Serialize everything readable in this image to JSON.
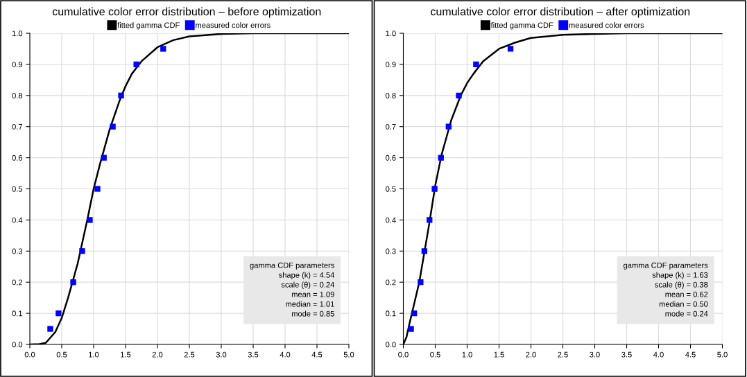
{
  "chart_data": [
    {
      "type": "scatter",
      "title": "cumulative color error distribution – before optimization",
      "legend": "top",
      "grid": true,
      "xlim": [
        0,
        5
      ],
      "ylim": [
        0,
        1
      ],
      "xticks": [
        {
          "value": 0,
          "label": "0.0"
        },
        {
          "value": 0.5,
          "label": "0.5"
        },
        {
          "value": 1,
          "label": "1.0"
        },
        {
          "value": 1.5,
          "label": "1.5"
        },
        {
          "value": 2,
          "label": "2.0"
        },
        {
          "value": 2.5,
          "label": "2.5"
        },
        {
          "value": 3,
          "label": "3.0"
        },
        {
          "value": 3.5,
          "label": "3.5"
        },
        {
          "value": 4,
          "label": "4.0"
        },
        {
          "value": 4.5,
          "label": "4.5"
        },
        {
          "value": 5,
          "label": "5.0"
        }
      ],
      "yticks": [
        {
          "value": 0,
          "label": "0.0"
        },
        {
          "value": 0.1,
          "label": "0.1"
        },
        {
          "value": 0.2,
          "label": "0.2"
        },
        {
          "value": 0.3,
          "label": "0.3"
        },
        {
          "value": 0.4,
          "label": "0.4"
        },
        {
          "value": 0.5,
          "label": "0.5"
        },
        {
          "value": 0.6,
          "label": "0.6"
        },
        {
          "value": 0.7,
          "label": "0.7"
        },
        {
          "value": 0.8,
          "label": "0.8"
        },
        {
          "value": 0.9,
          "label": "0.9"
        },
        {
          "value": 1,
          "label": "1.0"
        }
      ],
      "series": [
        {
          "name": "fitted gamma CDF",
          "type": "line",
          "color": "#000000",
          "marker": "none",
          "line_style": "solid",
          "x": [
            0,
            0.15,
            0.25,
            0.4,
            0.5,
            0.6,
            0.75,
            0.9,
            1.0,
            1.1,
            1.25,
            1.4,
            1.5,
            1.6,
            1.75,
            2.0,
            2.25,
            2.5,
            3.0,
            3.5,
            5.0
          ],
          "values": [
            0,
            0.001,
            0.005,
            0.04,
            0.085,
            0.15,
            0.26,
            0.4,
            0.5,
            0.58,
            0.69,
            0.78,
            0.83,
            0.87,
            0.91,
            0.955,
            0.978,
            0.99,
            0.998,
            1.0,
            1.0
          ]
        },
        {
          "name": "measured color errors",
          "color": "#0000ff",
          "marker": "square",
          "x": [
            0.32,
            0.45,
            0.68,
            0.82,
            0.94,
            1.06,
            1.16,
            1.3,
            1.43,
            1.67,
            2.09
          ],
          "values": [
            0.05,
            0.1,
            0.2,
            0.3,
            0.4,
            0.5,
            0.6,
            0.7,
            0.8,
            0.9,
            0.95
          ]
        }
      ],
      "annotations": [
        "gamma CDF parameters",
        "shape (k) = 4.54",
        "scale (θ) = 0.24",
        "mean = 1.09",
        "median = 1.01",
        "mode = 0.85"
      ]
    },
    {
      "type": "scatter",
      "title": "cumulative color error distribution – after optimization",
      "legend": "top",
      "grid": true,
      "xlim": [
        0,
        5
      ],
      "ylim": [
        0,
        1
      ],
      "xticks": [
        {
          "value": 0,
          "label": "0.0"
        },
        {
          "value": 0.5,
          "label": "0.5"
        },
        {
          "value": 1,
          "label": "1.0"
        },
        {
          "value": 1.5,
          "label": "1.5"
        },
        {
          "value": 2,
          "label": "2.0"
        },
        {
          "value": 2.5,
          "label": "2.5"
        },
        {
          "value": 3,
          "label": "3.0"
        },
        {
          "value": 3.5,
          "label": "3.5"
        },
        {
          "value": 4,
          "label": "4.0"
        },
        {
          "value": 4.5,
          "label": "4.5"
        },
        {
          "value": 5,
          "label": "5.0"
        }
      ],
      "yticks": [
        {
          "value": 0,
          "label": "0.0"
        },
        {
          "value": 0.1,
          "label": "0.1"
        },
        {
          "value": 0.2,
          "label": "0.2"
        },
        {
          "value": 0.3,
          "label": "0.3"
        },
        {
          "value": 0.4,
          "label": "0.4"
        },
        {
          "value": 0.5,
          "label": "0.5"
        },
        {
          "value": 0.6,
          "label": "0.6"
        },
        {
          "value": 0.7,
          "label": "0.7"
        },
        {
          "value": 0.8,
          "label": "0.8"
        },
        {
          "value": 0.9,
          "label": "0.9"
        },
        {
          "value": 1,
          "label": "1.0"
        }
      ],
      "series": [
        {
          "name": "fitted gamma CDF",
          "type": "line",
          "color": "#000000",
          "marker": "none",
          "line_style": "solid",
          "x": [
            0,
            0.05,
            0.1,
            0.25,
            0.4,
            0.5,
            0.6,
            0.75,
            0.9,
            1.0,
            1.1,
            1.25,
            1.5,
            1.75,
            2.0,
            2.5,
            3.0,
            3.5,
            5.0
          ],
          "values": [
            0,
            0.024,
            0.07,
            0.2,
            0.38,
            0.51,
            0.61,
            0.72,
            0.8,
            0.84,
            0.87,
            0.91,
            0.95,
            0.97,
            0.985,
            0.995,
            0.998,
            1.0,
            1.0
          ]
        },
        {
          "name": "measured color errors",
          "color": "#0000ff",
          "marker": "square",
          "x": [
            0.12,
            0.17,
            0.27,
            0.33,
            0.41,
            0.49,
            0.59,
            0.71,
            0.87,
            1.14,
            1.68
          ],
          "values": [
            0.05,
            0.1,
            0.2,
            0.3,
            0.4,
            0.5,
            0.6,
            0.7,
            0.8,
            0.9,
            0.95
          ]
        }
      ],
      "annotations": [
        "gamma CDF parameters",
        "shape (k) = 1.63",
        "scale (θ) = 0.38",
        "mean = 0.62",
        "median = 0.50",
        "mode = 0.24"
      ]
    }
  ]
}
